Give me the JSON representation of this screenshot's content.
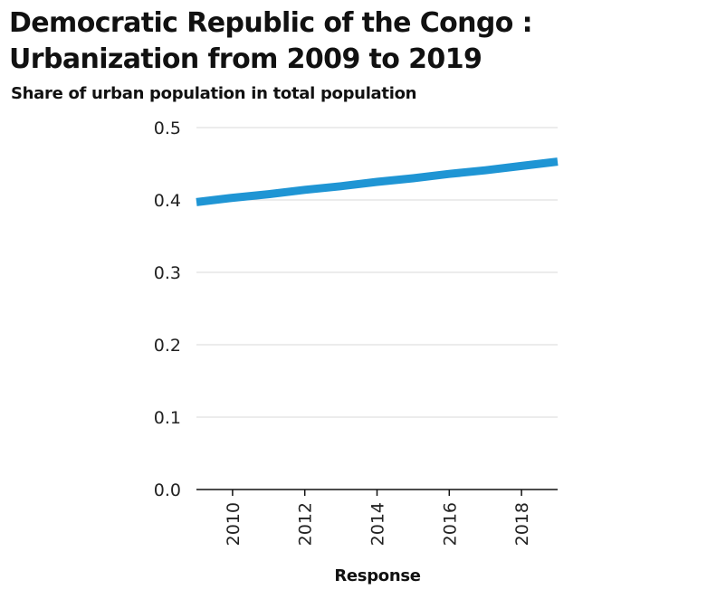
{
  "chart_data": {
    "type": "line",
    "title": "Democratic Republic of the Congo : Urbanization from 2009 to 2019",
    "ylabel": "Share of urban population in total population",
    "xlabel": "Response",
    "x": [
      2009,
      2010,
      2011,
      2012,
      2013,
      2014,
      2015,
      2016,
      2017,
      2018,
      2019
    ],
    "series": [
      {
        "values": [
          0.397,
          0.403,
          0.408,
          0.414,
          0.419,
          0.425,
          0.43,
          0.436,
          0.441,
          0.447,
          0.453
        ]
      }
    ],
    "xlim": [
      2009,
      2019
    ],
    "ylim": [
      0,
      0.5
    ],
    "x_ticks": [
      "2010",
      "2012",
      "2014",
      "2016",
      "2018"
    ],
    "y_ticks": [
      "0.0",
      "0.1",
      "0.2",
      "0.3",
      "0.4",
      "0.5"
    ],
    "grid": "horizontal",
    "legend": "none",
    "line_color": "#1f95d4"
  }
}
